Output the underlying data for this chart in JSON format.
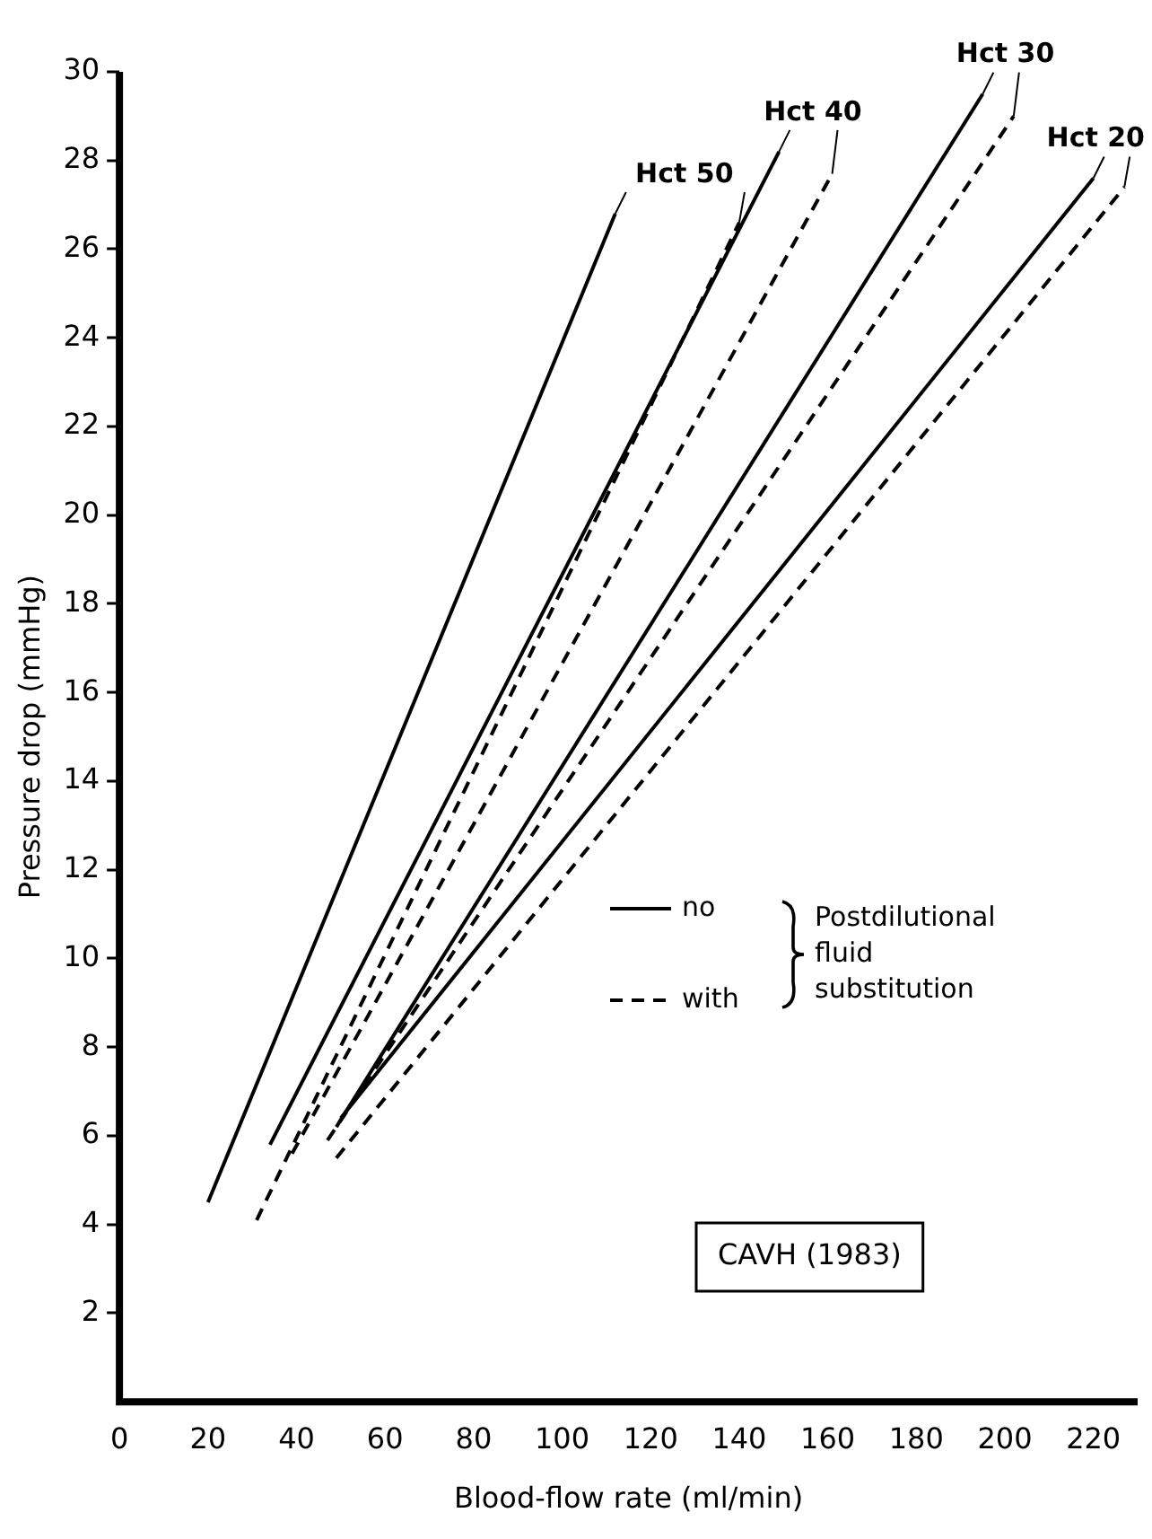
{
  "chart_data": {
    "type": "line",
    "xlabel": "Blood-flow rate (ml/min)",
    "ylabel": "Pressure drop (mmHg)",
    "xlim": [
      0,
      230
    ],
    "xticks": [
      0,
      20,
      40,
      60,
      80,
      100,
      120,
      140,
      160,
      180,
      200,
      220
    ],
    "ylim": [
      0,
      30
    ],
    "yticks": [
      2,
      4,
      6,
      8,
      10,
      12,
      14,
      16,
      18,
      20,
      22,
      24,
      26,
      28,
      30
    ],
    "grid": false,
    "legend": false,
    "marker": "none",
    "series": [
      {
        "name": "Hct 50",
        "color": "#000000",
        "line_style": "solid",
        "x": [
          20,
          112
        ],
        "values": [
          4.5,
          26.8
        ]
      },
      {
        "color": "#000000",
        "line_style": "dashed",
        "x": [
          31,
          140
        ],
        "values": [
          4.1,
          26.6
        ]
      },
      {
        "name": "Hct 40",
        "color": "#000000",
        "line_style": "solid",
        "x": [
          34,
          149
        ],
        "values": [
          5.8,
          28.2
        ]
      },
      {
        "color": "#000000",
        "line_style": "dashed",
        "x": [
          39,
          161
        ],
        "values": [
          5.6,
          27.7
        ]
      },
      {
        "name": "Hct 30",
        "color": "#000000",
        "line_style": "solid",
        "x": [
          49,
          195
        ],
        "values": [
          6.2,
          29.5
        ]
      },
      {
        "color": "#000000",
        "line_style": "dashed",
        "x": [
          47,
          202
        ],
        "values": [
          5.9,
          29
        ]
      },
      {
        "name": "Hct 20",
        "color": "#000000",
        "line_style": "solid",
        "x": [
          50,
          220
        ],
        "values": [
          6.4,
          27.6
        ]
      },
      {
        "color": "#000000",
        "line_style": "dashed",
        "x": [
          49,
          227
        ],
        "values": [
          5.5,
          27.4
        ]
      }
    ],
    "annotations": [
      "no",
      "with",
      "Postdilutional fluid substitution",
      "CAVH (1983)"
    ]
  }
}
